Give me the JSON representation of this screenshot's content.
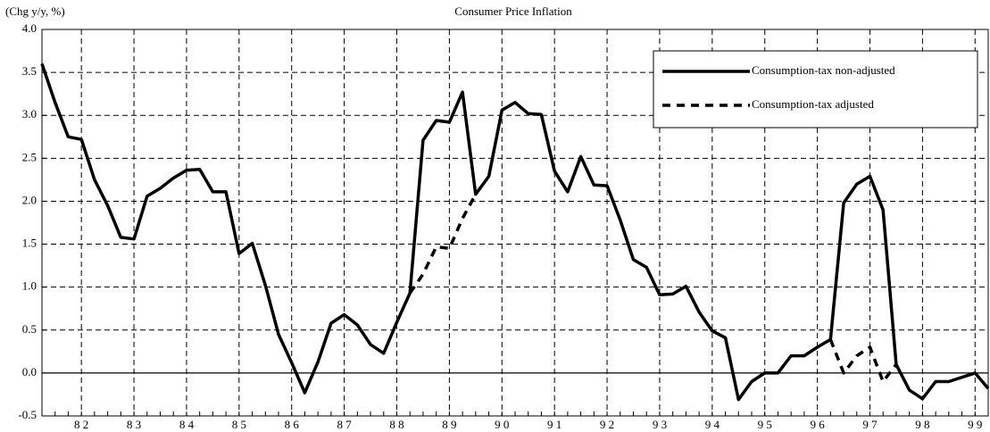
{
  "chart_data": {
    "type": "line",
    "title": "Consumer Price Inflation",
    "y_label": "(Chg y/y, %)",
    "categories": [
      null,
      null,
      null,
      "8 2",
      null,
      null,
      null,
      "8 3",
      null,
      null,
      null,
      "8 4",
      null,
      null,
      null,
      "8 5",
      null,
      null,
      null,
      "8 6",
      null,
      null,
      null,
      "8 7",
      null,
      null,
      null,
      "8 8",
      null,
      null,
      null,
      "8 9",
      null,
      null,
      null,
      "9 0",
      null,
      null,
      null,
      "9 1",
      null,
      null,
      null,
      "9 2",
      null,
      null,
      null,
      "9 3",
      null,
      null,
      null,
      "9 4",
      null,
      null,
      null,
      "9 5",
      null,
      null,
      null,
      "9 6",
      null,
      null,
      null,
      "9 7",
      null,
      null,
      null,
      "9 8",
      null,
      null,
      null,
      "9 9",
      null
    ],
    "series": [
      {
        "name": "Consumption-tax non-adjusted",
        "color": "#000000",
        "dash": false,
        "values": [
          3.6,
          3.15,
          2.75,
          2.72,
          2.25,
          1.95,
          1.58,
          1.56,
          2.06,
          2.15,
          2.27,
          2.36,
          2.37,
          2.11,
          2.11,
          1.39,
          1.51,
          1.02,
          0.45,
          0.12,
          -0.23,
          0.13,
          0.58,
          0.68,
          0.56,
          0.33,
          0.23,
          0.59,
          0.93,
          2.71,
          2.94,
          2.92,
          3.27,
          2.08,
          2.29,
          3.06,
          3.15,
          3.02,
          3.01,
          2.35,
          2.11,
          2.52,
          2.19,
          2.18,
          1.78,
          1.32,
          1.23,
          0.91,
          0.92,
          1.01,
          0.71,
          0.49,
          0.41,
          -0.31,
          -0.1,
          0.0,
          0.0,
          0.2,
          0.2,
          0.3,
          0.39,
          1.98,
          2.2,
          2.29,
          1.9,
          0.1,
          -0.2,
          -0.3,
          -0.1,
          -0.1,
          -0.05,
          0.0,
          -0.18
        ]
      },
      {
        "name": "Consumption-tax adjusted",
        "color": "#000000",
        "dash": true,
        "values": [
          null,
          null,
          null,
          null,
          null,
          null,
          null,
          null,
          null,
          null,
          null,
          null,
          null,
          null,
          null,
          null,
          null,
          null,
          null,
          null,
          null,
          null,
          null,
          null,
          null,
          null,
          null,
          null,
          0.93,
          1.15,
          1.47,
          1.45,
          1.8,
          2.08,
          null,
          null,
          null,
          null,
          null,
          null,
          null,
          null,
          null,
          null,
          null,
          null,
          null,
          null,
          null,
          null,
          null,
          null,
          null,
          null,
          null,
          null,
          null,
          null,
          null,
          null,
          0.39,
          0.0,
          0.2,
          0.3,
          -0.1,
          0.1,
          null,
          null,
          null,
          null,
          null,
          null,
          null
        ]
      }
    ],
    "ylim": [
      -0.5,
      4.0
    ],
    "yticks": [
      {
        "value": -0.5,
        "label": "-0.5"
      },
      {
        "value": 0,
        "label": "0.0"
      },
      {
        "value": 0.5,
        "label": "0.5"
      },
      {
        "value": 1,
        "label": "1.0"
      },
      {
        "value": 1.5,
        "label": "1.5"
      },
      {
        "value": 2,
        "label": "2.0"
      },
      {
        "value": 2.5,
        "label": "2.5"
      },
      {
        "value": 3,
        "label": "3.0"
      },
      {
        "value": 3.5,
        "label": "3.5"
      },
      {
        "value": 4,
        "label": "4.0"
      }
    ],
    "grid": true,
    "legend": "top-right"
  }
}
